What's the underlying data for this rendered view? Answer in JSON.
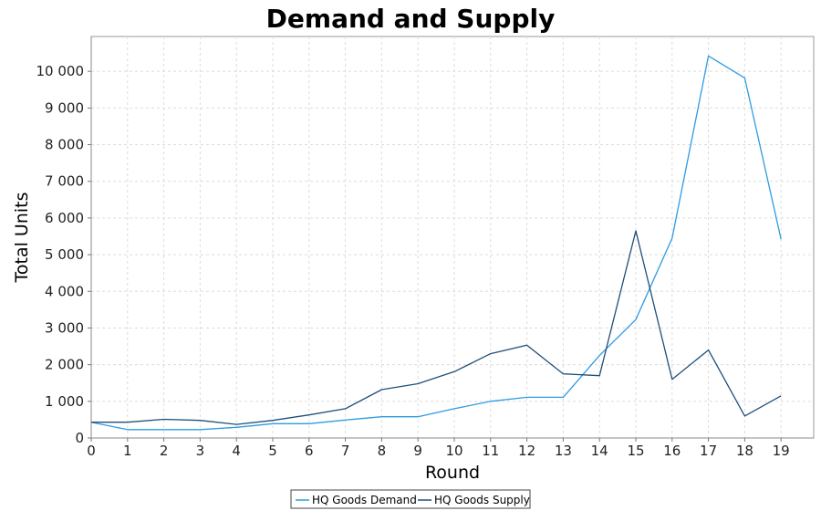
{
  "chart_data": {
    "type": "line",
    "title": "Demand and Supply",
    "xlabel": "Round",
    "ylabel": "Total Units",
    "x": [
      0,
      1,
      2,
      3,
      4,
      5,
      6,
      7,
      8,
      9,
      10,
      11,
      12,
      13,
      14,
      15,
      16,
      17,
      18,
      19
    ],
    "xlim": [
      0,
      19.9
    ],
    "ylim": [
      0,
      10950
    ],
    "yticks": [
      0,
      1000,
      2000,
      3000,
      4000,
      5000,
      6000,
      7000,
      8000,
      9000,
      10000
    ],
    "ytick_labels": [
      "0",
      "1 000",
      "2 000",
      "3 000",
      "4 000",
      "5 000",
      "6 000",
      "7 000",
      "8 000",
      "9 000",
      "10 000"
    ],
    "grid": true,
    "legend_position": "bottom-center",
    "series": [
      {
        "name": "HQ Goods Demand",
        "color": "#2f9be0",
        "values": [
          430,
          230,
          230,
          230,
          290,
          390,
          390,
          490,
          580,
          580,
          800,
          1000,
          1110,
          1110,
          2250,
          3230,
          5450,
          10420,
          9820,
          5420
        ]
      },
      {
        "name": "HQ Goods Supply",
        "color": "#1f4f7a",
        "values": [
          430,
          430,
          510,
          480,
          370,
          480,
          630,
          800,
          1320,
          1480,
          1810,
          2300,
          2530,
          1750,
          1700,
          5650,
          1600,
          2400,
          600,
          1150
        ]
      }
    ]
  }
}
